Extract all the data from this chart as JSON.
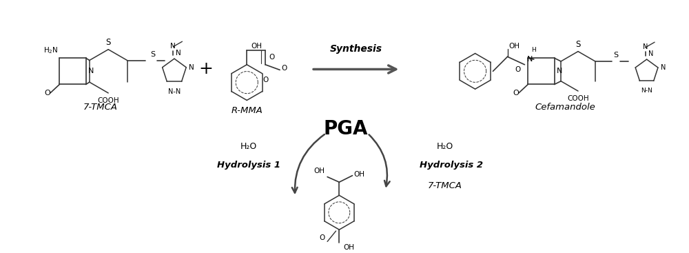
{
  "bg_color": "#ffffff",
  "fig_width": 10.0,
  "fig_height": 3.67,
  "dpi": 100,
  "label_7tmca": "7-TMCA",
  "label_rmma": "R-MMA",
  "label_cefamandole": "Cefamandole",
  "label_synthesis": "Synthesis",
  "label_pga": "PGA",
  "label_h2o_left": "H₂O",
  "label_h2o_right": "H₂O",
  "label_hydrolysis1": "Hydrolysis 1",
  "label_hydrolysis2": "Hydrolysis 2",
  "label_7tmca2": "7-TMCA",
  "plus_sign": "+",
  "line_color": "#333333",
  "text_color": "#000000"
}
